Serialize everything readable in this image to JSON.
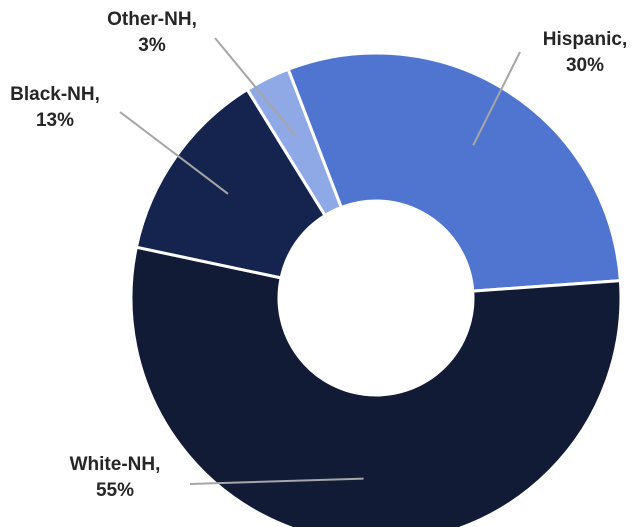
{
  "chart_data": {
    "type": "pie",
    "variant": "donut",
    "categories": [
      "Hispanic",
      "White-NH",
      "Black-NH",
      "Other-NH"
    ],
    "values": [
      30,
      55,
      13,
      3
    ],
    "value_labels": [
      "30%",
      "55%",
      "13%",
      "3%"
    ],
    "colors": [
      "#4f75d0",
      "#111b36",
      "#14244e",
      "#8fa9e6"
    ],
    "title": "",
    "legend": "none",
    "data_labels": "outside-with-leader-lines"
  }
}
